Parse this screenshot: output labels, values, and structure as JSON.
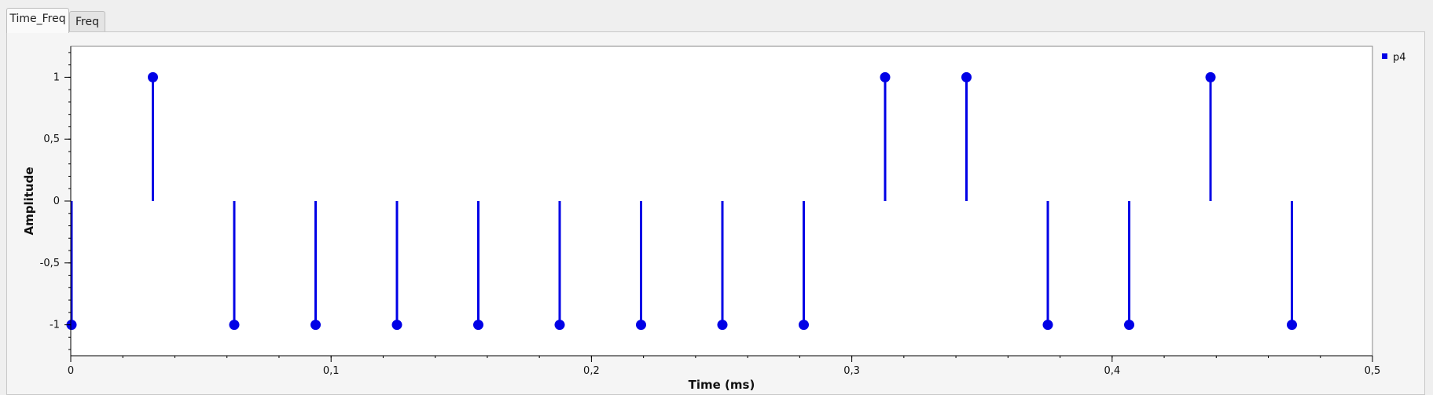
{
  "tabs": [
    {
      "label": "Time_Freq",
      "active": true
    },
    {
      "label": "Freq",
      "active": false
    }
  ],
  "colors": {
    "series": "#0000e6",
    "axis": "#000000",
    "plot_bg": "#ffffff"
  },
  "chart_data": {
    "type": "scatter",
    "style": "stem",
    "title": "",
    "xlabel": "Time (ms)",
    "ylabel": "Amplitude",
    "xlim": [
      0,
      0.5
    ],
    "ylim": [
      -1.25,
      1.25
    ],
    "xticks": [
      0,
      0.1,
      0.2,
      0.3,
      0.4,
      0.5
    ],
    "xtick_labels": [
      "0",
      "0,1",
      "0,2",
      "0,3",
      "0,4",
      "0,5"
    ],
    "yticks": [
      -1,
      -0.5,
      0,
      0.5,
      1
    ],
    "ytick_labels": [
      "-1",
      "-0,5",
      "0",
      "0,5",
      "1"
    ],
    "legend_position": "top-right",
    "grid": false,
    "series": [
      {
        "name": "p4",
        "x": [
          0,
          0.03125,
          0.0625,
          0.09375,
          0.125,
          0.15625,
          0.1875,
          0.21875,
          0.25,
          0.28125,
          0.3125,
          0.34375,
          0.375,
          0.40625,
          0.4375,
          0.46875
        ],
        "y": [
          -1,
          1,
          -1,
          -1,
          -1,
          -1,
          -1,
          -1,
          -1,
          -1,
          1,
          1,
          -1,
          -1,
          1,
          -1
        ]
      }
    ]
  }
}
